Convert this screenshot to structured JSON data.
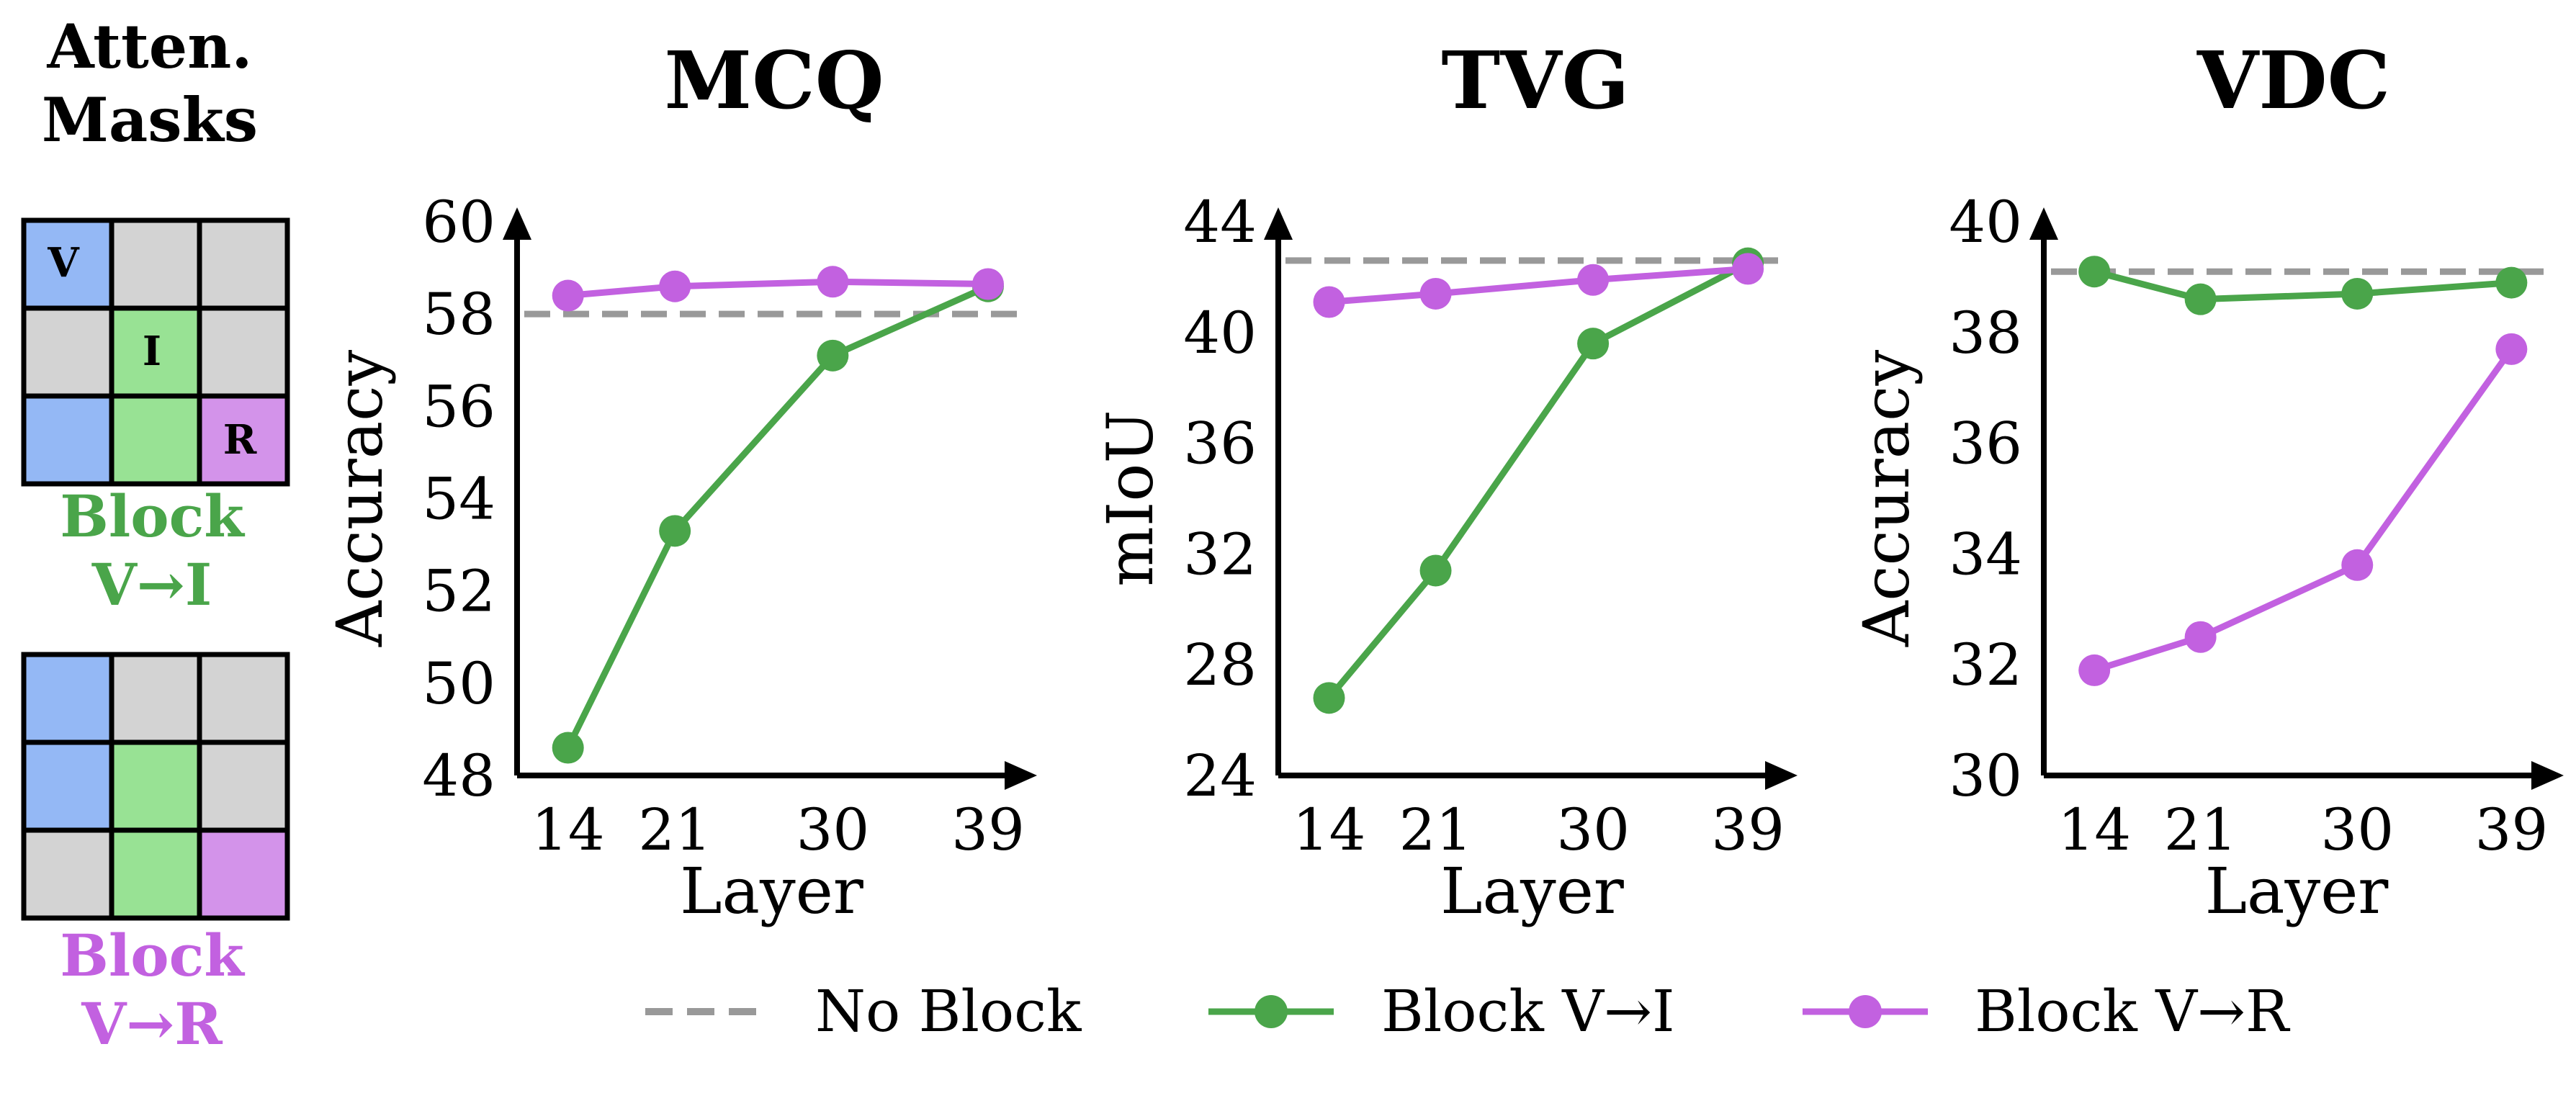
{
  "colors": {
    "green": "#4aa54a",
    "purple": "#c261e0",
    "gray_dash": "#999999",
    "mask_blue": "#94b8f5",
    "mask_green": "#98e294",
    "mask_purple": "#d393ea",
    "mask_gray": "#d3d3d3"
  },
  "masks_panel": {
    "title_line1": "Atten.",
    "title_line2": "Masks",
    "mask1": {
      "label_line1": "Block",
      "label_line2": "V→I",
      "cells": [
        [
          "blue",
          "gray",
          "gray"
        ],
        [
          "gray",
          "green",
          "gray"
        ],
        [
          "blue",
          "green",
          "purple"
        ]
      ],
      "cell_letters": {
        "v": "V",
        "i": "I",
        "r": "R"
      }
    },
    "mask2": {
      "label_line1": "Block",
      "label_line2": "V→R",
      "cells": [
        [
          "blue",
          "gray",
          "gray"
        ],
        [
          "blue",
          "green",
          "gray"
        ],
        [
          "gray",
          "green",
          "purple"
        ]
      ]
    }
  },
  "legend": {
    "no_block": "No Block",
    "block_vi": "Block V→I",
    "block_vr": "Block V→R"
  },
  "chart_data": [
    {
      "type": "line",
      "title": "MCQ",
      "xlabel": "Layer",
      "ylabel": "Accuracy",
      "x": [
        14,
        21,
        30,
        39
      ],
      "xticks": [
        "14",
        "21",
        "30",
        "39"
      ],
      "ylim": [
        48,
        60
      ],
      "yticks": [
        "48",
        "50",
        "52",
        "54",
        "56",
        "58",
        "60"
      ],
      "baseline": 58.0,
      "series": [
        {
          "name": "Block V→I",
          "values": [
            48.6,
            53.3,
            57.1,
            58.6
          ]
        },
        {
          "name": "Block V→R",
          "values": [
            58.4,
            58.6,
            58.7,
            58.65
          ]
        }
      ]
    },
    {
      "type": "line",
      "title": "TVG",
      "xlabel": "Layer",
      "ylabel": "mIoU",
      "x": [
        14,
        21,
        30,
        39
      ],
      "xticks": [
        "14",
        "21",
        "30",
        "39"
      ],
      "ylim": [
        24,
        44
      ],
      "yticks": [
        "24",
        "28",
        "32",
        "36",
        "40",
        "44"
      ],
      "baseline": 42.6,
      "series": [
        {
          "name": "Block V→I",
          "values": [
            26.8,
            31.4,
            39.6,
            42.5
          ]
        },
        {
          "name": "Block V→R",
          "values": [
            41.1,
            41.4,
            41.9,
            42.3
          ]
        }
      ]
    },
    {
      "type": "line",
      "title": "VDC",
      "xlabel": "Layer",
      "ylabel": "Accuracy",
      "x": [
        14,
        21,
        30,
        39
      ],
      "xticks": [
        "14",
        "21",
        "30",
        "39"
      ],
      "ylim": [
        30,
        40
      ],
      "yticks": [
        "30",
        "32",
        "34",
        "36",
        "38",
        "40"
      ],
      "baseline": 39.1,
      "series": [
        {
          "name": "Block V→I",
          "values": [
            39.1,
            38.6,
            38.7,
            38.9
          ]
        },
        {
          "name": "Block V→R",
          "values": [
            31.9,
            32.5,
            33.8,
            37.7
          ]
        }
      ]
    }
  ]
}
